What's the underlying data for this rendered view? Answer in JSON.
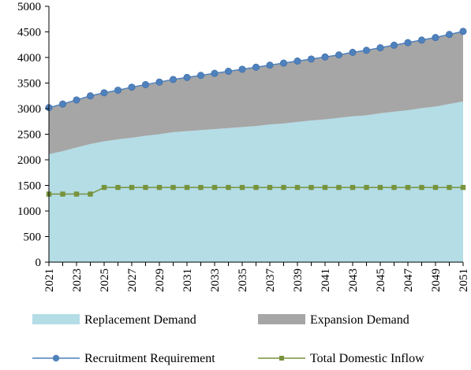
{
  "chart_data": {
    "type": "area",
    "x": [
      2021,
      2022,
      2023,
      2024,
      2025,
      2026,
      2027,
      2028,
      2029,
      2030,
      2031,
      2032,
      2033,
      2034,
      2035,
      2036,
      2037,
      2038,
      2039,
      2040,
      2041,
      2042,
      2043,
      2044,
      2045,
      2046,
      2047,
      2048,
      2049,
      2050,
      2051
    ],
    "x_tick_labels": [
      "2021",
      "2023",
      "2025",
      "2027",
      "2029",
      "2031",
      "2033",
      "2035",
      "2037",
      "2039",
      "2041",
      "2043",
      "2045",
      "2047",
      "2049",
      "2051"
    ],
    "y_tick_labels": [
      "0",
      "500",
      "1000",
      "1500",
      "2000",
      "2500",
      "3000",
      "3500",
      "4000",
      "4500",
      "5000"
    ],
    "ylim": [
      0,
      5000
    ],
    "xlabel": "",
    "ylabel": "",
    "title": "",
    "grid": false,
    "legend_position": "bottom",
    "series": [
      {
        "name": "Replacement Demand",
        "kind": "stacked-area",
        "color": "#b4dde6",
        "values": [
          2110,
          2170,
          2240,
          2310,
          2360,
          2400,
          2430,
          2470,
          2500,
          2540,
          2560,
          2580,
          2600,
          2620,
          2640,
          2660,
          2690,
          2710,
          2740,
          2770,
          2790,
          2820,
          2850,
          2870,
          2910,
          2940,
          2970,
          3010,
          3040,
          3090,
          3140
        ]
      },
      {
        "name": "Expansion Demand",
        "kind": "stacked-area",
        "color": "#a6a6a6",
        "values": [
          910,
          920,
          930,
          940,
          950,
          960,
          990,
          1000,
          1020,
          1030,
          1050,
          1070,
          1090,
          1110,
          1130,
          1150,
          1160,
          1180,
          1190,
          1200,
          1220,
          1230,
          1250,
          1270,
          1280,
          1300,
          1320,
          1330,
          1350,
          1360,
          1370
        ]
      },
      {
        "name": "Recruitment Requirement",
        "kind": "line",
        "color": "#4f81bd",
        "marker": "circle",
        "values": [
          3020,
          3090,
          3170,
          3250,
          3310,
          3360,
          3420,
          3470,
          3520,
          3570,
          3610,
          3650,
          3690,
          3730,
          3770,
          3810,
          3850,
          3890,
          3930,
          3970,
          4010,
          4050,
          4100,
          4140,
          4190,
          4240,
          4290,
          4340,
          4390,
          4450,
          4510
        ]
      },
      {
        "name": "Total Domestic Inflow",
        "kind": "line",
        "color": "#77933c",
        "marker": "square",
        "values": [
          1330,
          1330,
          1330,
          1330,
          1460,
          1460,
          1460,
          1460,
          1460,
          1460,
          1460,
          1460,
          1460,
          1460,
          1460,
          1460,
          1460,
          1460,
          1460,
          1460,
          1460,
          1460,
          1460,
          1460,
          1460,
          1460,
          1460,
          1460,
          1460,
          1460,
          1460
        ]
      }
    ]
  }
}
